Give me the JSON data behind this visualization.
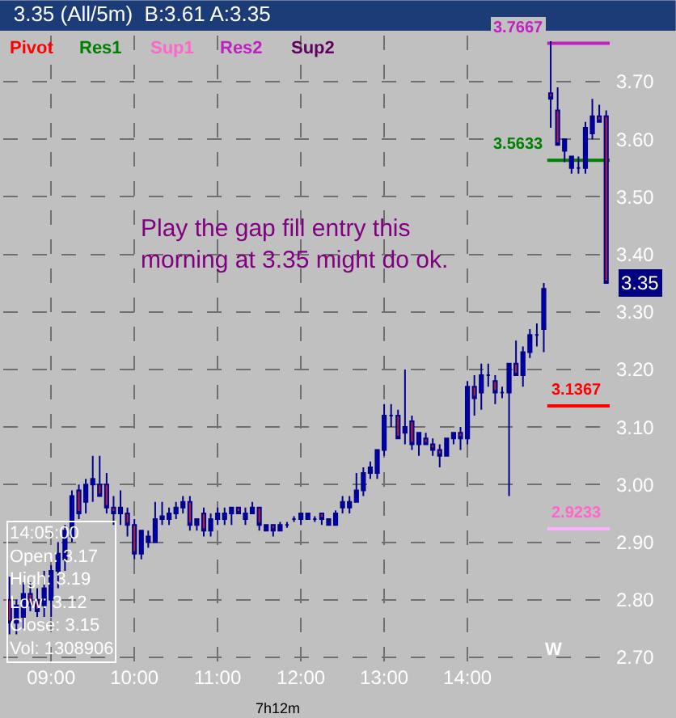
{
  "chart_data": {
    "type": "candlestick",
    "title": "3.35 (All/5m)  B:3.61 A:3.35",
    "categories": [
      null,
      null,
      null,
      null,
      null,
      null,
      "09:00",
      null,
      null,
      null,
      null,
      null,
      null,
      null,
      null,
      null,
      null,
      null,
      "10:00",
      null,
      null,
      null,
      null,
      null,
      null,
      null,
      null,
      null,
      null,
      null,
      "11:00",
      null,
      null,
      null,
      null,
      null,
      null,
      null,
      null,
      null,
      null,
      null,
      "12:00",
      null,
      null,
      null,
      null,
      null,
      null,
      null,
      null,
      null,
      null,
      null,
      "13:00",
      null,
      null,
      null,
      null,
      null,
      null,
      null,
      null,
      null,
      null,
      null,
      "14:00",
      null,
      null,
      null,
      null,
      null,
      null,
      null,
      null,
      null,
      null,
      null,
      null,
      null,
      null,
      null,
      null,
      null,
      null,
      null,
      null
    ],
    "ohlc": [
      [
        2.8,
        2.84,
        2.74,
        2.76
      ],
      [
        2.76,
        2.8,
        2.74,
        2.79
      ],
      [
        2.77,
        2.83,
        2.75,
        2.81
      ],
      [
        2.81,
        2.83,
        2.78,
        2.79
      ],
      [
        2.8,
        2.82,
        2.77,
        2.78
      ],
      [
        2.79,
        2.85,
        2.77,
        2.82
      ],
      [
        2.8,
        2.86,
        2.77,
        2.85
      ],
      [
        2.85,
        2.9,
        2.82,
        2.88
      ],
      [
        2.87,
        2.93,
        2.85,
        2.92
      ],
      [
        2.91,
        2.99,
        2.9,
        2.98
      ],
      [
        2.99,
        3.0,
        2.94,
        2.95
      ],
      [
        2.97,
        3.01,
        2.95,
        3.0
      ],
      [
        3.0,
        3.05,
        2.97,
        3.01
      ],
      [
        3.0,
        3.05,
        2.98,
        2.98
      ],
      [
        3.0,
        3.02,
        2.95,
        2.96
      ],
      [
        2.96,
        2.98,
        2.93,
        2.95
      ],
      [
        2.95,
        2.99,
        2.93,
        2.96
      ],
      [
        2.95,
        2.96,
        2.91,
        2.93
      ],
      [
        2.93,
        2.94,
        2.87,
        2.88
      ],
      [
        2.88,
        2.92,
        2.87,
        2.92
      ],
      [
        2.9,
        2.92,
        2.89,
        2.91
      ],
      [
        2.9,
        2.97,
        2.9,
        2.94
      ],
      [
        2.94,
        2.97,
        2.93,
        2.945
      ],
      [
        2.94,
        2.96,
        2.93,
        2.95
      ],
      [
        2.95,
        2.97,
        2.94,
        2.96
      ],
      [
        2.96,
        2.98,
        2.95,
        2.97
      ],
      [
        2.97,
        2.98,
        2.92,
        2.93
      ],
      [
        2.93,
        2.94,
        2.92,
        2.94
      ],
      [
        2.95,
        2.96,
        2.91,
        2.92
      ],
      [
        2.92,
        2.95,
        2.91,
        2.94
      ],
      [
        2.94,
        2.96,
        2.93,
        2.95
      ],
      [
        2.94,
        2.96,
        2.93,
        2.95
      ],
      [
        2.95,
        2.96,
        2.93,
        2.96
      ],
      [
        2.96,
        2.96,
        2.95,
        2.95
      ],
      [
        2.94,
        2.96,
        2.93,
        2.95
      ],
      [
        2.95,
        2.97,
        2.95,
        2.96
      ],
      [
        2.96,
        2.96,
        2.92,
        2.93
      ],
      [
        2.92,
        2.93,
        2.92,
        2.93
      ],
      [
        2.93,
        2.93,
        2.91,
        2.92
      ],
      [
        2.92,
        2.935,
        2.92,
        2.93
      ],
      [
        2.93,
        2.935,
        2.925,
        2.93
      ],
      [
        2.94,
        2.945,
        2.935,
        2.94
      ],
      [
        2.94,
        2.95,
        2.93,
        2.95
      ],
      [
        2.94,
        2.95,
        2.94,
        2.95
      ],
      [
        2.94,
        2.945,
        2.935,
        2.94
      ],
      [
        2.95,
        2.95,
        2.93,
        2.94
      ],
      [
        2.93,
        2.94,
        2.93,
        2.94
      ],
      [
        2.93,
        2.955,
        2.93,
        2.95
      ],
      [
        2.96,
        2.98,
        2.95,
        2.97
      ],
      [
        2.96,
        2.98,
        2.95,
        2.97
      ],
      [
        2.97,
        3.02,
        2.97,
        2.99
      ],
      [
        2.99,
        3.03,
        2.98,
        3.02
      ],
      [
        3.02,
        3.04,
        3.01,
        3.03
      ],
      [
        3.02,
        3.06,
        3.01,
        3.06
      ],
      [
        3.06,
        3.14,
        3.05,
        3.12
      ],
      [
        3.12,
        3.14,
        3.1,
        3.12
      ],
      [
        3.12,
        3.13,
        3.08,
        3.08
      ],
      [
        3.09,
        3.2,
        3.07,
        3.1
      ],
      [
        3.11,
        3.12,
        3.06,
        3.07
      ],
      [
        3.07,
        3.09,
        3.05,
        3.09
      ],
      [
        3.08,
        3.09,
        3.07,
        3.07
      ],
      [
        3.07,
        3.08,
        3.05,
        3.06
      ],
      [
        3.06,
        3.07,
        3.03,
        3.05
      ],
      [
        3.05,
        3.08,
        3.05,
        3.08
      ],
      [
        3.08,
        3.09,
        3.07,
        3.09
      ],
      [
        3.09,
        3.1,
        3.06,
        3.08
      ],
      [
        3.08,
        3.18,
        3.07,
        3.17
      ],
      [
        3.17,
        3.19,
        3.12,
        3.15
      ],
      [
        3.16,
        3.21,
        3.13,
        3.19
      ],
      [
        3.19,
        3.21,
        3.17,
        3.19
      ],
      [
        3.18,
        3.19,
        3.14,
        3.16
      ],
      [
        3.16,
        3.17,
        3.15,
        3.16
      ],
      [
        3.16,
        3.21,
        2.98,
        3.21
      ],
      [
        3.21,
        3.25,
        3.19,
        3.19
      ],
      [
        3.19,
        3.24,
        3.17,
        3.23
      ],
      [
        3.23,
        3.27,
        3.22,
        3.26
      ],
      [
        3.26,
        3.28,
        3.24,
        3.26
      ],
      [
        3.27,
        3.35,
        3.23,
        3.34
      ],
      [
        3.68,
        3.77,
        3.62,
        3.67
      ],
      [
        3.65,
        3.69,
        3.59,
        3.59
      ],
      [
        3.58,
        3.6,
        3.56,
        3.6
      ],
      [
        3.55,
        3.57,
        3.54,
        3.57
      ],
      [
        3.55,
        3.57,
        3.54,
        3.55
      ],
      [
        3.55,
        3.63,
        3.54,
        3.62
      ],
      [
        3.61,
        3.67,
        3.6,
        3.64
      ],
      [
        3.64,
        3.66,
        3.63,
        3.63
      ],
      [
        3.64,
        3.65,
        3.35,
        3.35
      ]
    ],
    "ylim": [
      2.69,
      3.78
    ],
    "yticks": [
      {
        "value": 2.7,
        "label": "2.70"
      },
      {
        "value": 2.8,
        "label": "2.80"
      },
      {
        "value": 2.9,
        "label": "2.90"
      },
      {
        "value": 3.0,
        "label": "3.00"
      },
      {
        "value": 3.1,
        "label": "3.10"
      },
      {
        "value": 3.2,
        "label": "3.20"
      },
      {
        "value": 3.3,
        "label": "3.30"
      },
      {
        "value": 3.4,
        "label": "3.40"
      },
      {
        "value": 3.5,
        "label": "3.50"
      },
      {
        "value": 3.6,
        "label": "3.60"
      },
      {
        "value": 3.7,
        "label": "3.70"
      }
    ],
    "grid": true,
    "ref_lines": [
      {
        "axis": "y",
        "value": 3.1367,
        "label": "3.1367",
        "color": "#ff0000"
      },
      {
        "axis": "y",
        "value": 3.5633,
        "label": "3.5633",
        "color": "#008000"
      },
      {
        "axis": "y",
        "value": 2.9233,
        "label": "2.9233",
        "color": "#ffb0ff"
      },
      {
        "axis": "y",
        "value": 3.7667,
        "label": "3.7667",
        "color": "#c020c0"
      }
    ],
    "annotations": [
      "Play the gap fill entry this\nmorning at 3.35 might do ok.",
      "Pivot",
      "Res1",
      "Sup1",
      "Res2",
      "Sup2",
      "14:05:00\nOpen: 3.17\nHigh: 3.19\nLow: 3.12\nClose: 3.15\nVol: 1308906",
      "W",
      "7h12m",
      {
        "text": "3.35",
        "y": 3.35
      }
    ]
  }
}
